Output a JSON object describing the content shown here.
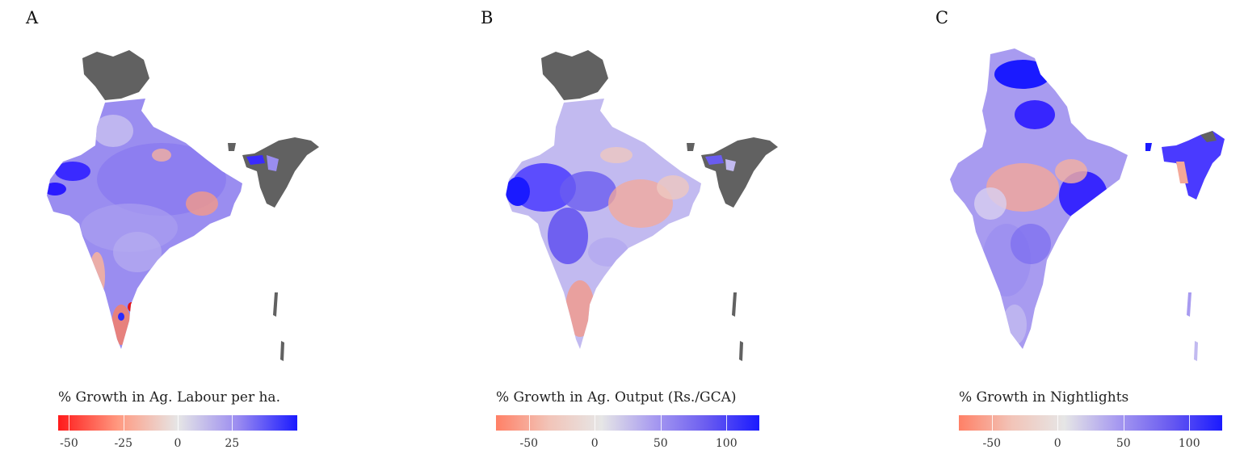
{
  "colors": {
    "no_data": "#616161",
    "negative": "#ff1a1a",
    "neutral": "#e6e6e6",
    "positive": "#1a1aff"
  },
  "panels": [
    {
      "letter": "A",
      "legend_title": "% Growth in Ag. Labour per ha.",
      "scale": {
        "min": -55,
        "max": 55
      },
      "ticks": [
        {
          "label": "-50",
          "value": -50
        },
        {
          "label": "-25",
          "value": -25
        },
        {
          "label": "0",
          "value": 0
        },
        {
          "label": "25",
          "value": 25
        }
      ],
      "gradient_stops": [
        "#ff1a1a",
        "#ff9980",
        "#e6e6e6",
        "#9b8cf0",
        "#1a1aff"
      ]
    },
    {
      "letter": "B",
      "legend_title": "% Growth in Ag. Output (Rs./GCA)",
      "scale": {
        "min": -75,
        "max": 125
      },
      "ticks": [
        {
          "label": "-50",
          "value": -50
        },
        {
          "label": "0",
          "value": 0
        },
        {
          "label": "50",
          "value": 50
        },
        {
          "label": "100",
          "value": 100
        }
      ],
      "gradient_stops": [
        "#ff8066",
        "#f2c4b8",
        "#e6e6e6",
        "#a89bf0",
        "#6a5cf0",
        "#1a1aff"
      ]
    },
    {
      "letter": "C",
      "legend_title": "% Growth in Nightlights",
      "scale": {
        "min": -75,
        "max": 125
      },
      "ticks": [
        {
          "label": "-50",
          "value": -50
        },
        {
          "label": "0",
          "value": 0
        },
        {
          "label": "50",
          "value": 50
        },
        {
          "label": "100",
          "value": 100
        }
      ],
      "gradient_stops": [
        "#ff8066",
        "#f2c4b8",
        "#e6e6e6",
        "#a89bf0",
        "#6a5cf0",
        "#1a1aff"
      ]
    }
  ]
}
